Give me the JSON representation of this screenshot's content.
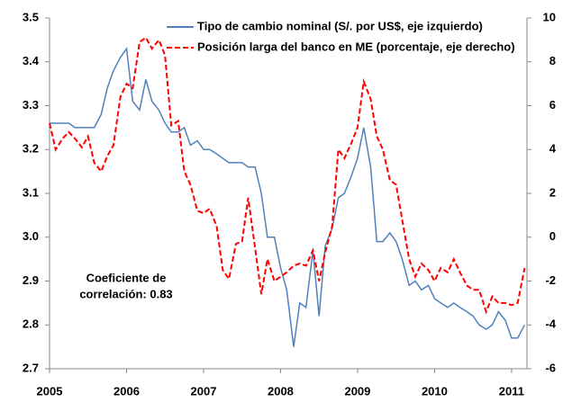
{
  "chart_data": {
    "type": "line",
    "annotation": [
      "Coeficiente de",
      "correlación: 0.83"
    ],
    "xlim": [
      2005,
      2011.2
    ],
    "xticks": [
      2005,
      2006,
      2007,
      2008,
      2009,
      2010,
      2011
    ],
    "ylim": [
      2.7,
      3.5
    ],
    "yticks": [
      2.7,
      2.8,
      2.9,
      {
        "value": 3,
        "label": "3.0"
      },
      3.1,
      3.2,
      3.3,
      3.4,
      3.5
    ],
    "y2lim": [
      -6,
      10
    ],
    "y2ticks": [
      -6,
      -4,
      -2,
      0,
      2,
      4,
      6,
      8,
      10
    ],
    "series": [
      {
        "name": "Tipo de cambio nominal (S/. por US$, eje izquierdo)",
        "color": "#4f81bd",
        "dash": false,
        "x": [
          2005,
          2005.08,
          2005.17,
          2005.25,
          2005.33,
          2005.42,
          2005.5,
          2005.58,
          2005.67,
          2005.75,
          2005.83,
          2005.92,
          2006,
          2006.08,
          2006.17,
          2006.25,
          2006.33,
          2006.42,
          2006.5,
          2006.58,
          2006.67,
          2006.75,
          2006.83,
          2006.92,
          2007,
          2007.08,
          2007.17,
          2007.25,
          2007.33,
          2007.42,
          2007.5,
          2007.58,
          2007.67,
          2007.75,
          2007.83,
          2007.92,
          2008,
          2008.08,
          2008.17,
          2008.25,
          2008.33,
          2008.42,
          2008.5,
          2008.58,
          2008.67,
          2008.75,
          2008.83,
          2008.92,
          2009,
          2009.08,
          2009.17,
          2009.25,
          2009.33,
          2009.42,
          2009.5,
          2009.58,
          2009.67,
          2009.75,
          2009.83,
          2009.92,
          2010,
          2010.08,
          2010.17,
          2010.25,
          2010.33,
          2010.42,
          2010.5,
          2010.58,
          2010.67,
          2010.75,
          2010.83,
          2010.92,
          2011,
          2011.08,
          2011.17
        ],
        "values": [
          3.26,
          3.26,
          3.26,
          3.26,
          3.25,
          3.25,
          3.25,
          3.25,
          3.28,
          3.34,
          3.38,
          3.41,
          3.43,
          3.31,
          3.29,
          3.36,
          3.31,
          3.29,
          3.26,
          3.24,
          3.24,
          3.25,
          3.21,
          3.22,
          3.2,
          3.2,
          3.19,
          3.18,
          3.17,
          3.17,
          3.17,
          3.16,
          3.16,
          3.1,
          3.0,
          3.0,
          2.93,
          2.88,
          2.75,
          2.85,
          2.84,
          2.97,
          2.82,
          2.98,
          3.02,
          3.09,
          3.1,
          3.14,
          3.18,
          3.25,
          3.16,
          2.99,
          2.99,
          3.01,
          2.99,
          2.95,
          2.89,
          2.9,
          2.88,
          2.89,
          2.86,
          2.85,
          2.84,
          2.85,
          2.84,
          2.83,
          2.82,
          2.8,
          2.79,
          2.8,
          2.83,
          2.81,
          2.77,
          2.77,
          2.8
        ]
      },
      {
        "name": "Posición larga del banco en ME (porcentaje, eje derecho)",
        "color": "#ff0000",
        "dash": true,
        "axis": "y2",
        "x": [
          2005,
          2005.08,
          2005.17,
          2005.25,
          2005.33,
          2005.42,
          2005.5,
          2005.58,
          2005.67,
          2005.75,
          2005.83,
          2005.92,
          2006,
          2006.08,
          2006.17,
          2006.25,
          2006.33,
          2006.42,
          2006.5,
          2006.58,
          2006.67,
          2006.75,
          2006.83,
          2006.92,
          2007,
          2007.08,
          2007.17,
          2007.25,
          2007.33,
          2007.42,
          2007.5,
          2007.58,
          2007.67,
          2007.75,
          2007.83,
          2007.92,
          2008,
          2008.08,
          2008.17,
          2008.25,
          2008.33,
          2008.42,
          2008.5,
          2008.58,
          2008.67,
          2008.75,
          2008.83,
          2008.92,
          2009,
          2009.08,
          2009.17,
          2009.25,
          2009.33,
          2009.42,
          2009.5,
          2009.58,
          2009.67,
          2009.75,
          2009.83,
          2009.92,
          2010,
          2010.08,
          2010.17,
          2010.25,
          2010.33,
          2010.42,
          2010.5,
          2010.58,
          2010.67,
          2010.75,
          2010.83,
          2010.92,
          2011,
          2011.08,
          2011.17
        ],
        "values": [
          5.2,
          4.0,
          4.5,
          4.8,
          4.5,
          4.1,
          4.6,
          3.4,
          3.0,
          3.7,
          4.2,
          6.4,
          7.0,
          6.8,
          8.9,
          9.1,
          8.6,
          9.0,
          8.3,
          5.1,
          5.3,
          3.0,
          2.4,
          1.2,
          1.1,
          1.3,
          0.5,
          -1.5,
          -1.9,
          -0.3,
          -0.2,
          1.8,
          -0.5,
          -2.6,
          -1.0,
          -2.0,
          -1.8,
          -1.6,
          -1.3,
          -1.2,
          -1.3,
          -0.6,
          -2.0,
          -0.7,
          0.5,
          4.0,
          3.6,
          4.3,
          5.0,
          7.1,
          6.3,
          4.6,
          4.0,
          2.6,
          2.4,
          0.8,
          -1.0,
          -1.8,
          -1.2,
          -1.5,
          -2.0,
          -1.4,
          -1.6,
          -1.0,
          -1.6,
          -2.2,
          -2.4,
          -2.4,
          -3.4,
          -2.7,
          -3.0,
          -3.0,
          -3.1,
          -3.0,
          -1.4
        ]
      }
    ]
  }
}
